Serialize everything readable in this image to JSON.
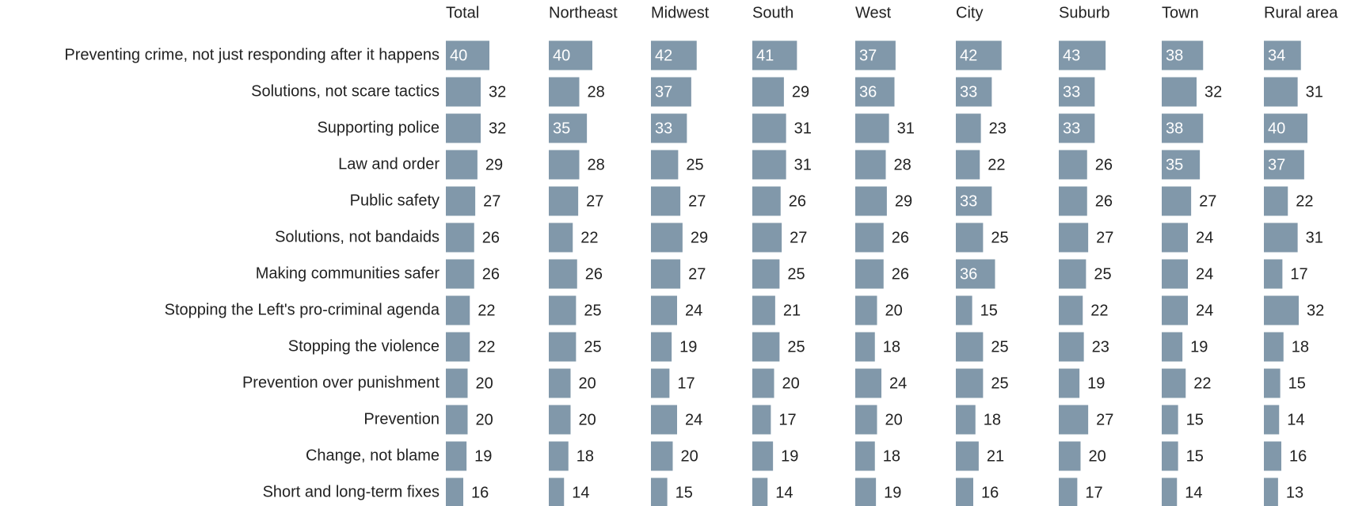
{
  "chart_data": {
    "type": "bar",
    "color": "#8198aa",
    "categories": [
      "Preventing crime, not just responding after it happens",
      "Solutions, not scare tactics",
      "Supporting police",
      "Law and order",
      "Public safety",
      "Solutions, not bandaids",
      "Making communities safer",
      "Stopping the Left's pro-criminal agenda",
      "Stopping the violence",
      "Prevention over punishment",
      "Prevention",
      "Change, not blame",
      "Short and long-term fixes"
    ],
    "series": [
      {
        "name": "Total",
        "values": [
          40,
          32,
          32,
          29,
          27,
          26,
          26,
          22,
          22,
          20,
          20,
          19,
          16
        ]
      },
      {
        "name": "Northeast",
        "values": [
          40,
          28,
          35,
          28,
          27,
          22,
          26,
          25,
          25,
          20,
          20,
          18,
          14
        ]
      },
      {
        "name": "Midwest",
        "values": [
          42,
          37,
          33,
          25,
          27,
          29,
          27,
          24,
          19,
          17,
          24,
          20,
          15
        ]
      },
      {
        "name": "South",
        "values": [
          41,
          29,
          31,
          31,
          26,
          27,
          25,
          21,
          25,
          20,
          17,
          19,
          14
        ]
      },
      {
        "name": "West",
        "values": [
          37,
          36,
          31,
          28,
          29,
          26,
          26,
          20,
          18,
          24,
          20,
          18,
          19
        ]
      },
      {
        "name": "City",
        "values": [
          42,
          33,
          23,
          22,
          33,
          25,
          36,
          15,
          25,
          25,
          18,
          21,
          16
        ]
      },
      {
        "name": "Suburb",
        "values": [
          43,
          33,
          33,
          26,
          26,
          27,
          25,
          22,
          23,
          19,
          27,
          20,
          17
        ]
      },
      {
        "name": "Town",
        "values": [
          38,
          32,
          38,
          35,
          27,
          24,
          24,
          24,
          19,
          22,
          15,
          15,
          14
        ]
      },
      {
        "name": "Rural area",
        "values": [
          34,
          31,
          40,
          37,
          22,
          31,
          17,
          32,
          18,
          15,
          14,
          16,
          13
        ]
      }
    ]
  }
}
